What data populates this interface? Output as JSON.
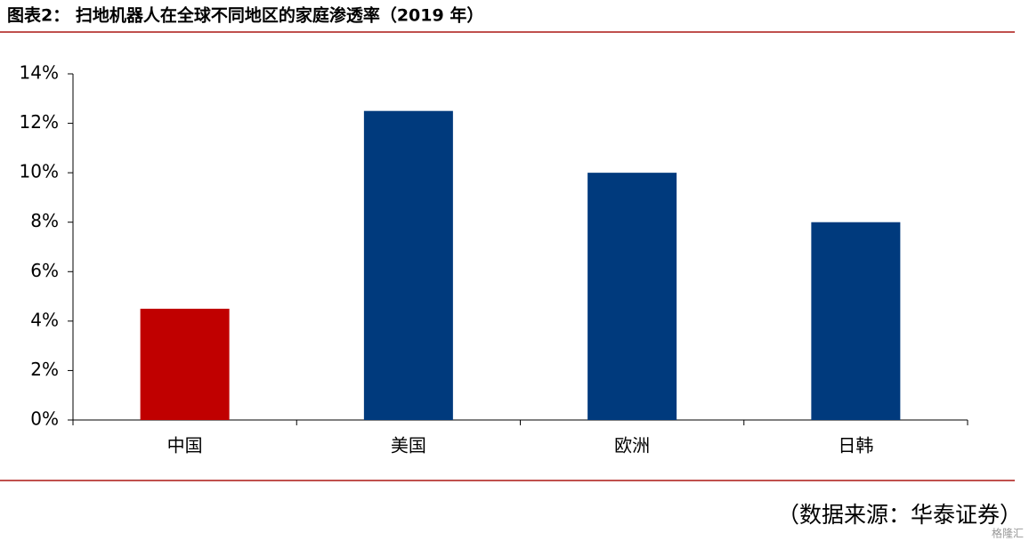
{
  "chart_data": {
    "type": "bar",
    "title": "图表2：  扫地机器人在全球不同地区的家庭渗透率（2019 年）",
    "categories": [
      "中国",
      "美国",
      "欧洲",
      "日韩"
    ],
    "values": [
      4.5,
      12.5,
      10,
      8
    ],
    "colors": [
      "#c00000",
      "#003a7d",
      "#003a7d",
      "#003a7d"
    ],
    "ylim": [
      0,
      14
    ],
    "yticks": [
      {
        "value": 0,
        "label": "0%"
      },
      {
        "value": 2,
        "label": "2%"
      },
      {
        "value": 4,
        "label": "4%"
      },
      {
        "value": 6,
        "label": "6%"
      },
      {
        "value": 8,
        "label": "8%"
      },
      {
        "value": 10,
        "label": "10%"
      },
      {
        "value": 12,
        "label": "12%"
      },
      {
        "value": 14,
        "label": "14%"
      }
    ],
    "grid": false,
    "source": "（数据来源：华泰证券）",
    "watermark": "格隆汇"
  }
}
